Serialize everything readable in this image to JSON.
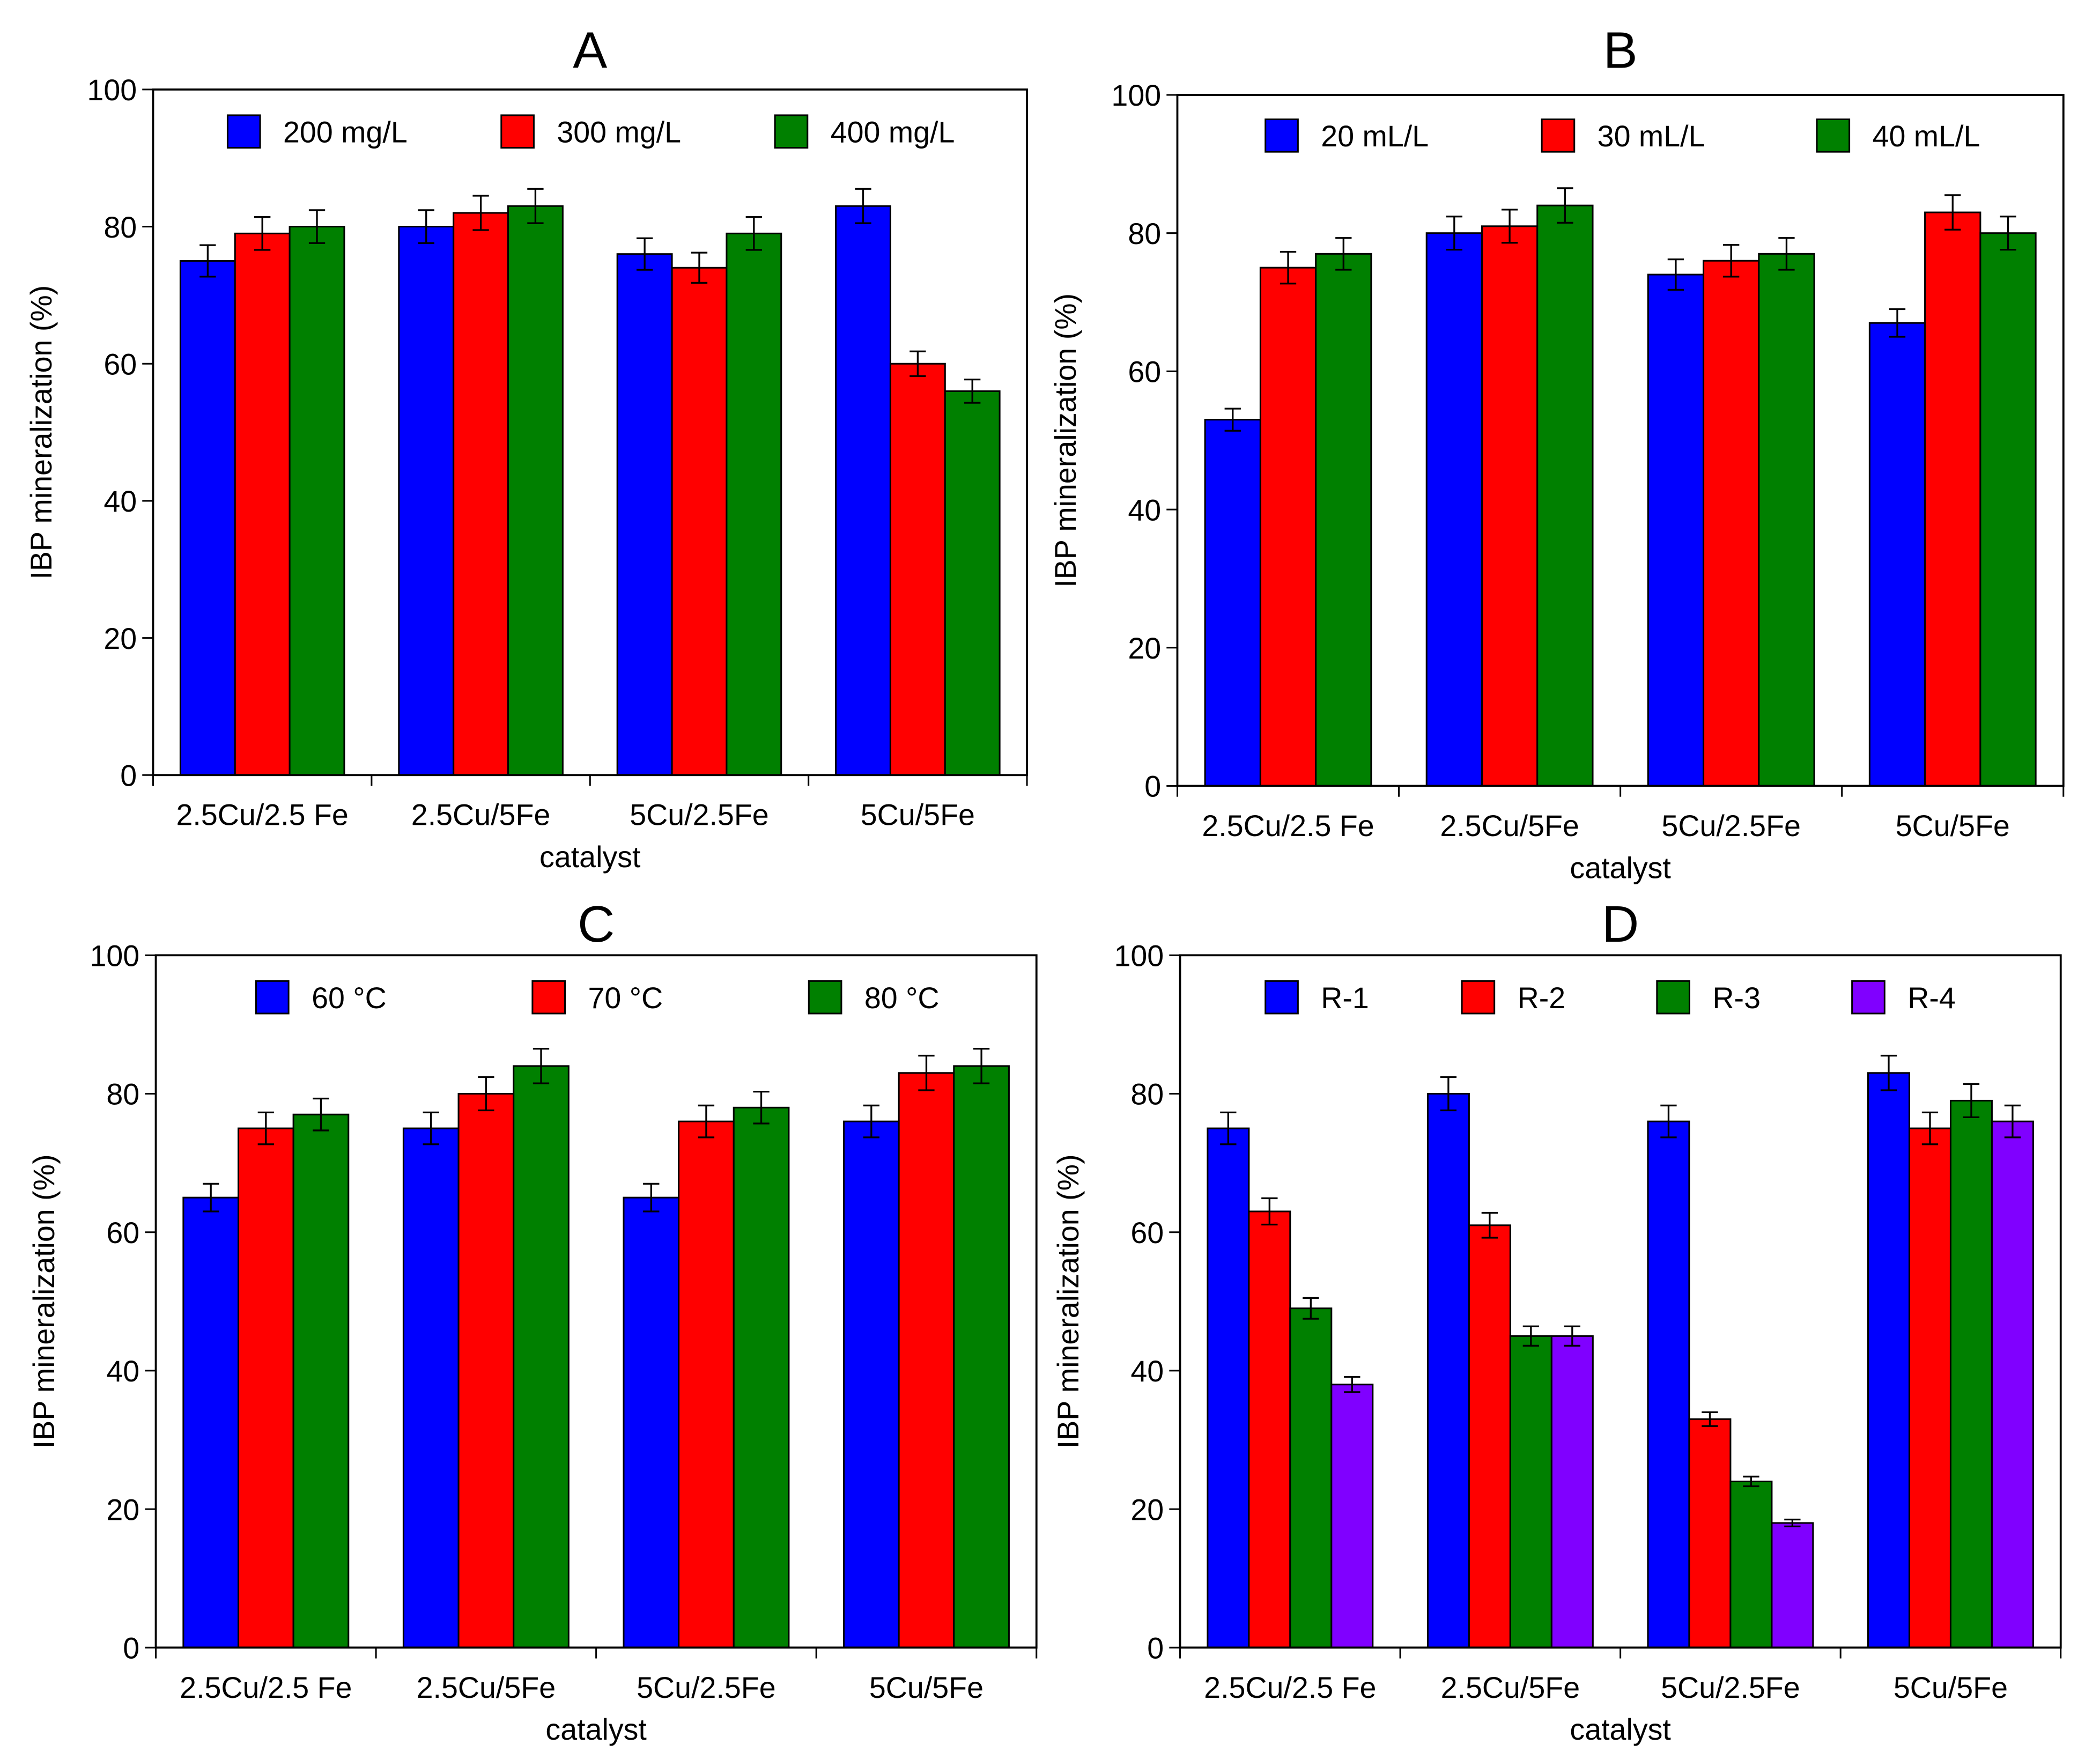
{
  "chart_data": [
    {
      "type": "bar",
      "title": "A",
      "xlabel": "catalyst",
      "ylabel": "IBP mineralization (%)",
      "ylim": [
        0,
        100
      ],
      "yticks": [
        "0",
        "20",
        "40",
        "60",
        "80",
        "100"
      ],
      "categories": [
        "2.5Cu/2.5 Fe",
        "2.5Cu/5Fe",
        "5Cu/2.5Fe",
        "5Cu/5Fe"
      ],
      "legend_position": "top",
      "series": [
        {
          "name": "200 mg/L",
          "color": "#0000ff",
          "values": [
            75,
            80,
            76,
            83
          ],
          "errors": [
            2.3,
            2.4,
            2.3,
            2.5
          ]
        },
        {
          "name": "300 mg/L",
          "color": "#ff0000",
          "values": [
            79,
            82,
            74,
            60
          ],
          "errors": [
            2.4,
            2.5,
            2.2,
            1.8
          ]
        },
        {
          "name": "400 mg/L",
          "color": "#008000",
          "values": [
            80,
            83,
            79,
            56
          ],
          "errors": [
            2.4,
            2.5,
            2.4,
            1.7
          ]
        }
      ]
    },
    {
      "type": "bar",
      "title": "B",
      "xlabel": "catalyst",
      "ylabel": "IBP mineralization (%)",
      "ylim": [
        0,
        100
      ],
      "yticks": [
        "0",
        "20",
        "40",
        "60",
        "80",
        "100"
      ],
      "categories": [
        "2.5Cu/2.5 Fe",
        "2.5Cu/5Fe",
        "5Cu/2.5Fe",
        "5Cu/5Fe"
      ],
      "legend_position": "top",
      "series": [
        {
          "name": "20 mL/L",
          "color": "#0000ff",
          "values": [
            53,
            80,
            74,
            67
          ],
          "errors": [
            1.6,
            2.4,
            2.2,
            2.0
          ]
        },
        {
          "name": "30 mL/L",
          "color": "#ff0000",
          "values": [
            75,
            81,
            76,
            83
          ],
          "errors": [
            2.3,
            2.4,
            2.3,
            2.5
          ]
        },
        {
          "name": "40 mL/L",
          "color": "#008000",
          "values": [
            77,
            84,
            77,
            80
          ],
          "errors": [
            2.3,
            2.5,
            2.3,
            2.4
          ]
        }
      ]
    },
    {
      "type": "bar",
      "title": "C",
      "xlabel": "catalyst",
      "ylabel": "IBP mineralization (%)",
      "ylim": [
        0,
        100
      ],
      "yticks": [
        "0",
        "20",
        "40",
        "60",
        "80",
        "100"
      ],
      "categories": [
        "2.5Cu/2.5 Fe",
        "2.5Cu/5Fe",
        "5Cu/2.5Fe",
        "5Cu/5Fe"
      ],
      "legend_position": "top",
      "series": [
        {
          "name": "60 °C",
          "color": "#0000ff",
          "values": [
            65,
            75,
            65,
            76
          ],
          "errors": [
            2.0,
            2.3,
            2.0,
            2.3
          ]
        },
        {
          "name": "70 °C",
          "color": "#ff0000",
          "values": [
            75,
            80,
            76,
            83
          ],
          "errors": [
            2.3,
            2.4,
            2.3,
            2.5
          ]
        },
        {
          "name": "80 °C",
          "color": "#008000",
          "values": [
            77,
            84,
            78,
            84
          ],
          "errors": [
            2.3,
            2.5,
            2.3,
            2.5
          ]
        }
      ]
    },
    {
      "type": "bar",
      "title": "D",
      "xlabel": "catalyst",
      "ylabel": "IBP mineralization (%)",
      "ylim": [
        0,
        100
      ],
      "yticks": [
        "0",
        "20",
        "40",
        "60",
        "80",
        "100"
      ],
      "categories": [
        "2.5Cu/2.5 Fe",
        "2.5Cu/5Fe",
        "5Cu/2.5Fe",
        "5Cu/5Fe"
      ],
      "legend_position": "top",
      "series": [
        {
          "name": "R-1",
          "color": "#0000ff",
          "values": [
            75,
            80,
            76,
            83
          ],
          "errors": [
            2.3,
            2.4,
            2.3,
            2.5
          ]
        },
        {
          "name": "R-2",
          "color": "#ff0000",
          "values": [
            63,
            61,
            33,
            75
          ],
          "errors": [
            1.9,
            1.8,
            1.0,
            2.3
          ]
        },
        {
          "name": "R-3",
          "color": "#008000",
          "values": [
            49,
            45,
            24,
            79
          ],
          "errors": [
            1.5,
            1.4,
            0.7,
            2.4
          ]
        },
        {
          "name": "R-4",
          "color": "#8000ff",
          "values": [
            38,
            45,
            18,
            76
          ],
          "errors": [
            1.1,
            1.4,
            0.5,
            2.3
          ]
        }
      ]
    }
  ]
}
